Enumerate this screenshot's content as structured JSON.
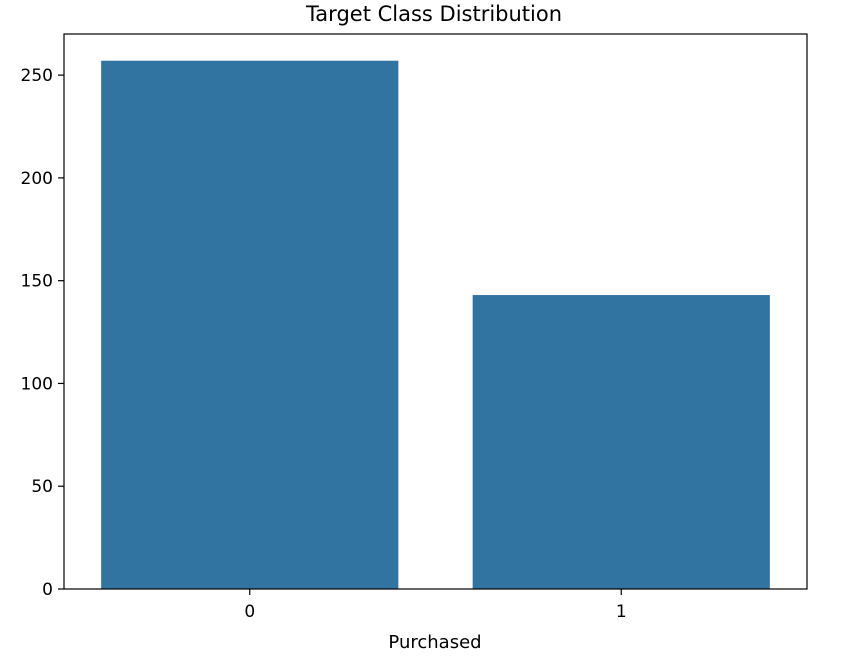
{
  "chart_data": {
    "type": "bar",
    "title": "Target Class Distribution",
    "xlabel": "Purchased",
    "ylabel": "",
    "categories": [
      "0",
      "1"
    ],
    "values": [
      257,
      143
    ],
    "ylim": [
      0,
      270
    ],
    "yticks": [
      0,
      50,
      100,
      150,
      200,
      250
    ],
    "bar_color": "#3274a1",
    "grid": false,
    "legend": "none"
  }
}
